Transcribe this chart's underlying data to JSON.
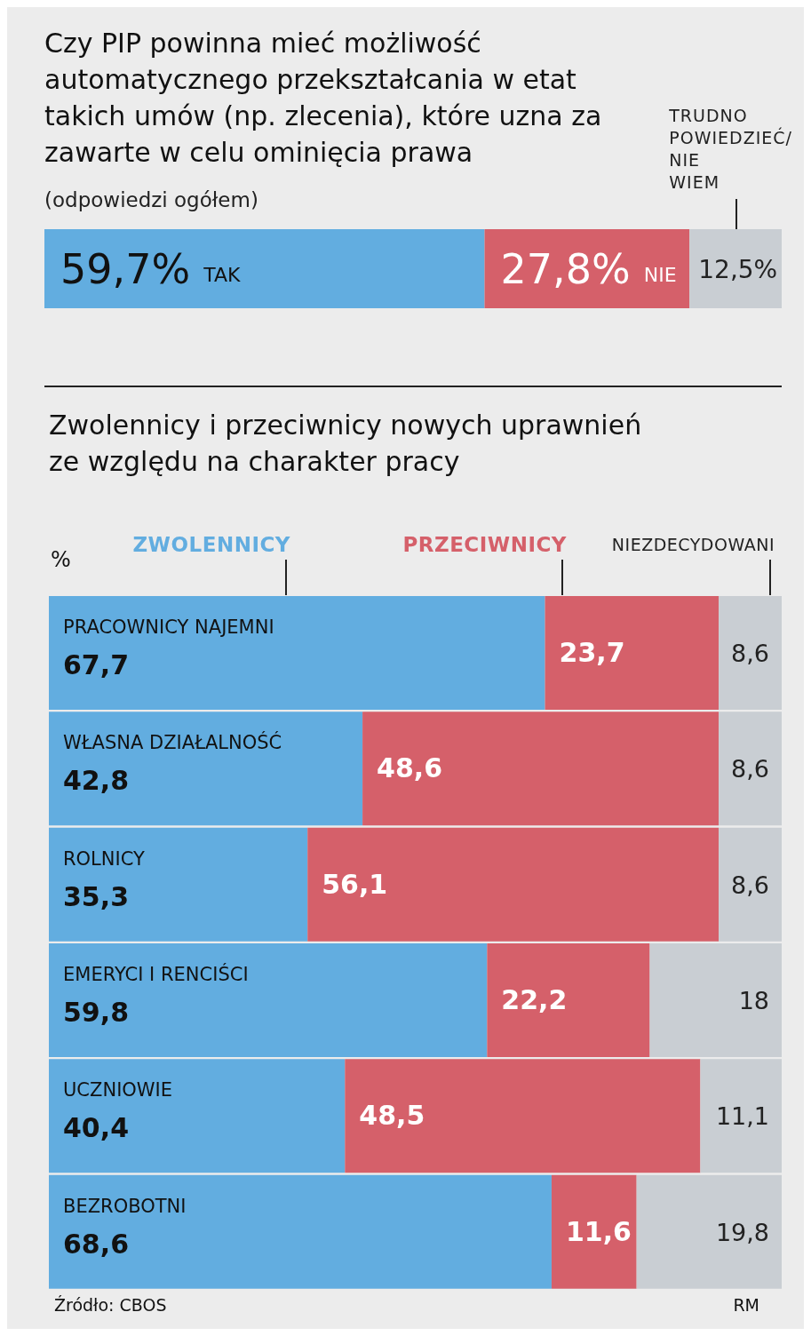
{
  "chart_data": [
    {
      "type": "bar",
      "orientation": "horizontal",
      "stacked": true,
      "title": "Czy PIP powinna mieć możliwość automatycznego przekształcania w etat takich umów (np. zlecenia), które uzna za zawarte w celu ominięcia prawa",
      "subtitle": "(odpowiedzi ogółem)",
      "categories": [
        null
      ],
      "xlim": [
        0,
        100
      ],
      "tick_labels": false,
      "series": [
        {
          "name": "TAK",
          "color": "#62ade0",
          "values": [
            59.7
          ],
          "value_labels": [
            "59,7%"
          ]
        },
        {
          "name": "NIE",
          "color": "#d5606a",
          "values": [
            27.8
          ],
          "value_labels": [
            "27,8%"
          ]
        },
        {
          "name": "TRUDNO POWIEDZIEĆ/ NIE WIEM",
          "color": "#c9ced3",
          "values": [
            12.5
          ],
          "value_labels": [
            "12,5%"
          ]
        }
      ]
    },
    {
      "type": "bar",
      "orientation": "horizontal",
      "stacked": true,
      "title": "Zwolennicy i przeciwnicy nowych uprawnień ze względu na charakter pracy",
      "xlabel": "%",
      "categories": [
        "PRACOWNICY NAJEMNI",
        "WŁASNA DZIAŁALNOŚĆ",
        "ROLNICY",
        "EMERYCI I RENCIŚCI",
        "UCZNIOWIE",
        "BEZROBOTNI"
      ],
      "xlim": [
        0,
        100
      ],
      "tick_labels": false,
      "series": [
        {
          "name": "ZWOLENNICY",
          "color": "#62ade0",
          "values": [
            67.7,
            42.8,
            35.3,
            59.8,
            40.4,
            68.6
          ],
          "value_labels": [
            "67,7",
            "42,8",
            "35,3",
            "59,8",
            "40,4",
            "68,6"
          ]
        },
        {
          "name": "PRZECIWNICY",
          "color": "#d5606a",
          "values": [
            23.7,
            48.6,
            56.1,
            22.2,
            48.5,
            11.6
          ],
          "value_labels": [
            "23,7",
            "48,6",
            "56,1",
            "22,2",
            "48,5",
            "11,6"
          ]
        },
        {
          "name": "NIEZDECYDOWANI",
          "color": "#c9ced3",
          "values": [
            8.6,
            8.6,
            8.6,
            18,
            11.1,
            19.8
          ],
          "value_labels": [
            "8,6",
            "8,6",
            "8,6",
            "18",
            "11,1",
            "19,8"
          ]
        }
      ],
      "annotations": [
        "Źródło: CBOS",
        "RM"
      ]
    }
  ]
}
